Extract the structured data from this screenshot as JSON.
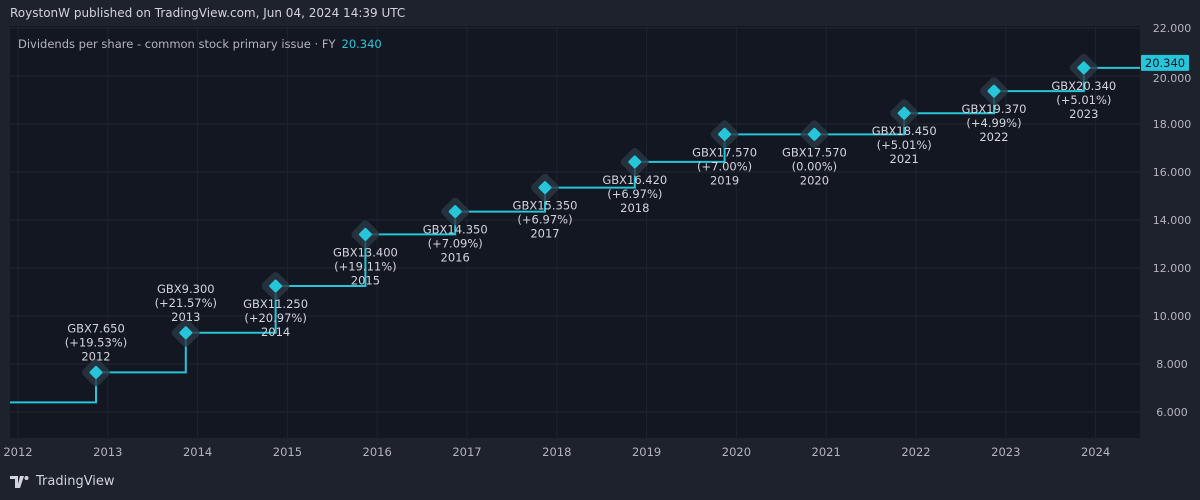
{
  "header": {
    "published": "RoystonW published on TradingView.com, Jun 04, 2024 14:39 UTC"
  },
  "legend": {
    "label": "Dividends per share - common stock primary issue · FY",
    "value": "20.340"
  },
  "footer": {
    "brand": "TradingView"
  },
  "colors": {
    "line": "#26c6da",
    "background": "#131722",
    "panel": "#1e222d",
    "text": "#b2b5be"
  },
  "chart_data": {
    "type": "line",
    "step": true,
    "currency": "GBX",
    "x_ticks": [
      "2012",
      "2013",
      "2014",
      "2015",
      "2016",
      "2017",
      "2018",
      "2019",
      "2020",
      "2021",
      "2022",
      "2023",
      "2024"
    ],
    "y_ticks": [
      "6.000",
      "8.000",
      "10.000",
      "12.000",
      "14.000",
      "16.000",
      "18.000",
      "20.000",
      "22.000"
    ],
    "ylim": [
      5.8,
      22.2
    ],
    "grid": true,
    "last_value_label": "20.340",
    "start_value": 6.4,
    "points": [
      {
        "fy": "2012",
        "value": 7.65,
        "label": "GBX7.650",
        "change": "(+19.53%)"
      },
      {
        "fy": "2013",
        "value": 9.3,
        "label": "GBX9.300",
        "change": "(+21.57%)"
      },
      {
        "fy": "2014",
        "value": 11.25,
        "label": "GBX11.250",
        "change": "(+20.97%)"
      },
      {
        "fy": "2015",
        "value": 13.4,
        "label": "GBX13.400",
        "change": "(+19.11%)"
      },
      {
        "fy": "2016",
        "value": 14.35,
        "label": "GBX14.350",
        "change": "(+7.09%)"
      },
      {
        "fy": "2017",
        "value": 15.35,
        "label": "GBX15.350",
        "change": "(+6.97%)"
      },
      {
        "fy": "2018",
        "value": 16.42,
        "label": "GBX16.420",
        "change": "(+6.97%)"
      },
      {
        "fy": "2019",
        "value": 17.57,
        "label": "GBX17.570",
        "change": "(+7.00%)"
      },
      {
        "fy": "2020",
        "value": 17.57,
        "label": "GBX17.570",
        "change": "(0.00%)"
      },
      {
        "fy": "2021",
        "value": 18.45,
        "label": "GBX18.450",
        "change": "(+5.01%)"
      },
      {
        "fy": "2022",
        "value": 19.37,
        "label": "GBX19.370",
        "change": "(+4.99%)"
      },
      {
        "fy": "2023",
        "value": 20.34,
        "label": "GBX20.340",
        "change": "(+5.01%)"
      }
    ]
  }
}
